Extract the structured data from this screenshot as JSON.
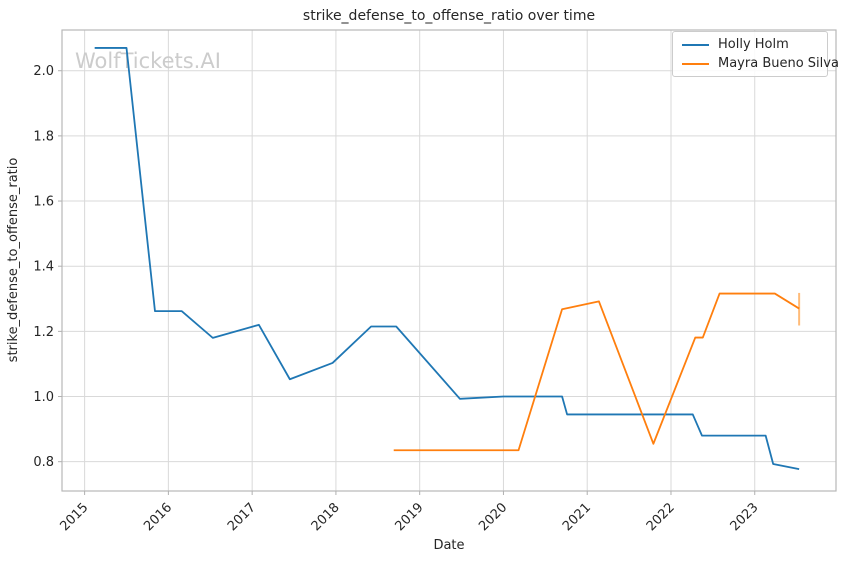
{
  "watermark": "WolfTickets.AI",
  "colors": {
    "grid": "#d9d9d9",
    "spine": "#b8b8b8",
    "tick": "#b0b0b0",
    "text": "#262626",
    "watermark": "#cccccc",
    "series_blue": "#1f77b4",
    "series_orange": "#ff7f0e",
    "end_cap_orange": "#ffbb78"
  },
  "chart_data": {
    "type": "line",
    "title": "strike_defense_to_offense_ratio over time",
    "xlabel": "Date",
    "ylabel": "strike_defense_to_offense_ratio",
    "xlim": [
      2014.73,
      2023.97
    ],
    "ylim": [
      0.71,
      2.125
    ],
    "x_ticks": [
      2015,
      2016,
      2017,
      2018,
      2019,
      2020,
      2021,
      2022,
      2023
    ],
    "y_ticks": [
      0.8,
      1.0,
      1.2,
      1.4,
      1.6,
      1.8,
      2.0
    ],
    "grid": true,
    "legend_position": "upper right",
    "series": [
      {
        "name": "Holly Holm",
        "color": "#1f77b4",
        "points": [
          [
            2015.12,
            2.07
          ],
          [
            2015.5,
            2.07
          ],
          [
            2015.84,
            1.262
          ],
          [
            2016.16,
            1.262
          ],
          [
            2016.53,
            1.18
          ],
          [
            2017.08,
            1.22
          ],
          [
            2017.45,
            1.053
          ],
          [
            2017.96,
            1.103
          ],
          [
            2018.42,
            1.215
          ],
          [
            2018.72,
            1.215
          ],
          [
            2019.48,
            0.993
          ],
          [
            2020.0,
            1.0
          ],
          [
            2020.7,
            1.0
          ],
          [
            2020.76,
            0.945
          ],
          [
            2022.26,
            0.945
          ],
          [
            2022.37,
            0.88
          ],
          [
            2023.13,
            0.88
          ],
          [
            2023.22,
            0.793
          ],
          [
            2023.53,
            0.777
          ]
        ]
      },
      {
        "name": "Mayra Bueno Silva",
        "color": "#ff7f0e",
        "points": [
          [
            2018.69,
            0.835
          ],
          [
            2020.18,
            0.835
          ],
          [
            2020.7,
            1.268
          ],
          [
            2021.14,
            1.292
          ],
          [
            2021.79,
            0.855
          ],
          [
            2022.29,
            1.181
          ],
          [
            2022.38,
            1.181
          ],
          [
            2022.58,
            1.316
          ],
          [
            2023.24,
            1.316
          ],
          [
            2023.53,
            1.27
          ]
        ],
        "end_cap": {
          "x": 2023.53,
          "y1": 1.218,
          "y2": 1.318
        }
      }
    ]
  }
}
